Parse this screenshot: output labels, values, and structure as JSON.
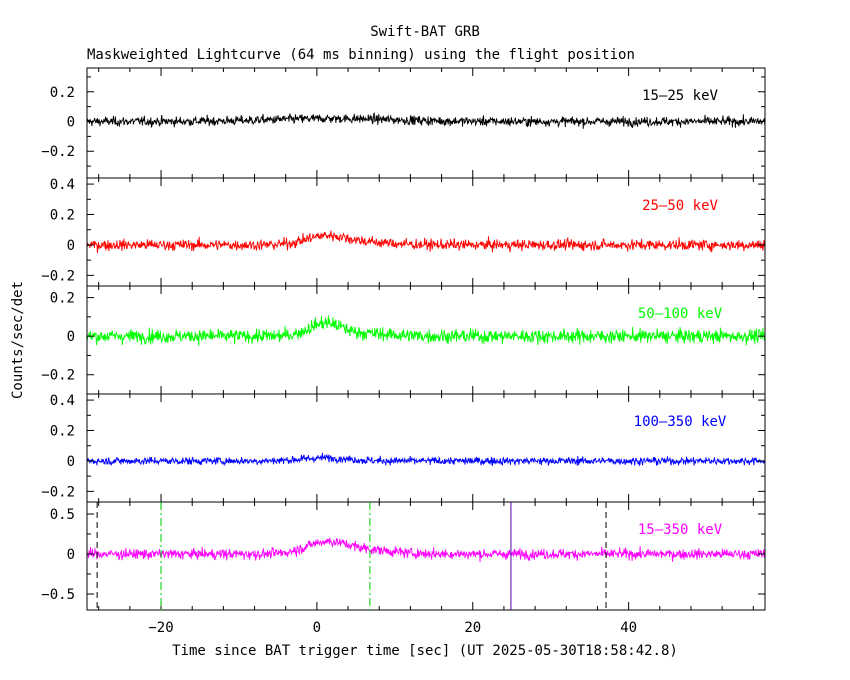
{
  "chart_data": {
    "type": "line",
    "title": "Swift-BAT GRB",
    "subtitle": "Maskweighted Lightcurve (64 ms binning) using the flight position",
    "xlabel": "Time since BAT trigger time [sec] (UT 2025-05-30T18:58:42.8)",
    "ylabel": "Counts/sec/det",
    "xlim": [
      -29.5,
      57.5
    ],
    "x_ticks": [
      -20,
      0,
      20,
      40
    ],
    "x_tick_labels": [
      "−20",
      "0",
      "20",
      "40"
    ],
    "bin_width_sec": 0.064,
    "panels": [
      {
        "name": "15–25 keV",
        "color": "#000000",
        "ylim": [
          -0.38,
          0.36
        ],
        "y_ticks": [
          0.2,
          0,
          -0.2
        ],
        "y_tick_labels": [
          "0.2",
          "0",
          "−0.2"
        ],
        "noise_sigma": 0.022,
        "baseline": 0.0,
        "bumps": [
          {
            "t": 2,
            "width": 8,
            "height": 0.02
          }
        ]
      },
      {
        "name": "25–50 keV",
        "color": "#ff0000",
        "ylim": [
          -0.27,
          0.44
        ],
        "y_ticks": [
          0.4,
          0.2,
          0,
          -0.2
        ],
        "y_tick_labels": [
          "0.4",
          "0.2",
          "0",
          "−0.2"
        ],
        "noise_sigma": 0.025,
        "baseline": 0.0,
        "bumps": [
          {
            "t": 1,
            "width": 2.5,
            "height": 0.05
          },
          {
            "t": 5,
            "width": 4,
            "height": 0.02
          }
        ]
      },
      {
        "name": "50–100 keV",
        "color": "#00ff00",
        "ylim": [
          -0.3,
          0.26
        ],
        "y_ticks": [
          0.2,
          0,
          -0.2
        ],
        "y_tick_labels": [
          "0.2",
          "0",
          "−0.2"
        ],
        "noise_sigma": 0.025,
        "baseline": 0.0,
        "bumps": [
          {
            "t": 1,
            "width": 2,
            "height": 0.06
          },
          {
            "t": 5,
            "width": 4,
            "height": 0.015
          }
        ]
      },
      {
        "name": "100–350 keV",
        "color": "#0000ff",
        "ylim": [
          -0.27,
          0.44
        ],
        "y_ticks": [
          0.4,
          0.2,
          0,
          -0.2
        ],
        "y_tick_labels": [
          "0.4",
          "0.2",
          "0",
          "−0.2"
        ],
        "noise_sigma": 0.018,
        "baseline": 0.0,
        "bumps": [
          {
            "t": 1,
            "width": 3,
            "height": 0.02
          }
        ]
      },
      {
        "name": "15–350 keV",
        "color": "#ff00ff",
        "ylim": [
          -0.7,
          0.65
        ],
        "y_ticks": [
          0.5,
          0,
          -0.5
        ],
        "y_tick_labels": [
          "0.5",
          "0",
          "−0.5"
        ],
        "noise_sigma": 0.045,
        "baseline": 0.0,
        "bumps": [
          {
            "t": 1,
            "width": 2.5,
            "height": 0.12
          },
          {
            "t": 5,
            "width": 4,
            "height": 0.06
          }
        ]
      }
    ],
    "markers": [
      {
        "t": -28.2,
        "style": "dashed",
        "color": "#000000"
      },
      {
        "t": 37.1,
        "style": "dashed",
        "color": "#000000"
      },
      {
        "t": -20.0,
        "style": "dash-dot",
        "color": "#00cc00"
      },
      {
        "t": 6.8,
        "style": "dash-dot",
        "color": "#00cc00"
      },
      {
        "t": 24.9,
        "style": "solid",
        "color": "#5500aa"
      }
    ]
  }
}
